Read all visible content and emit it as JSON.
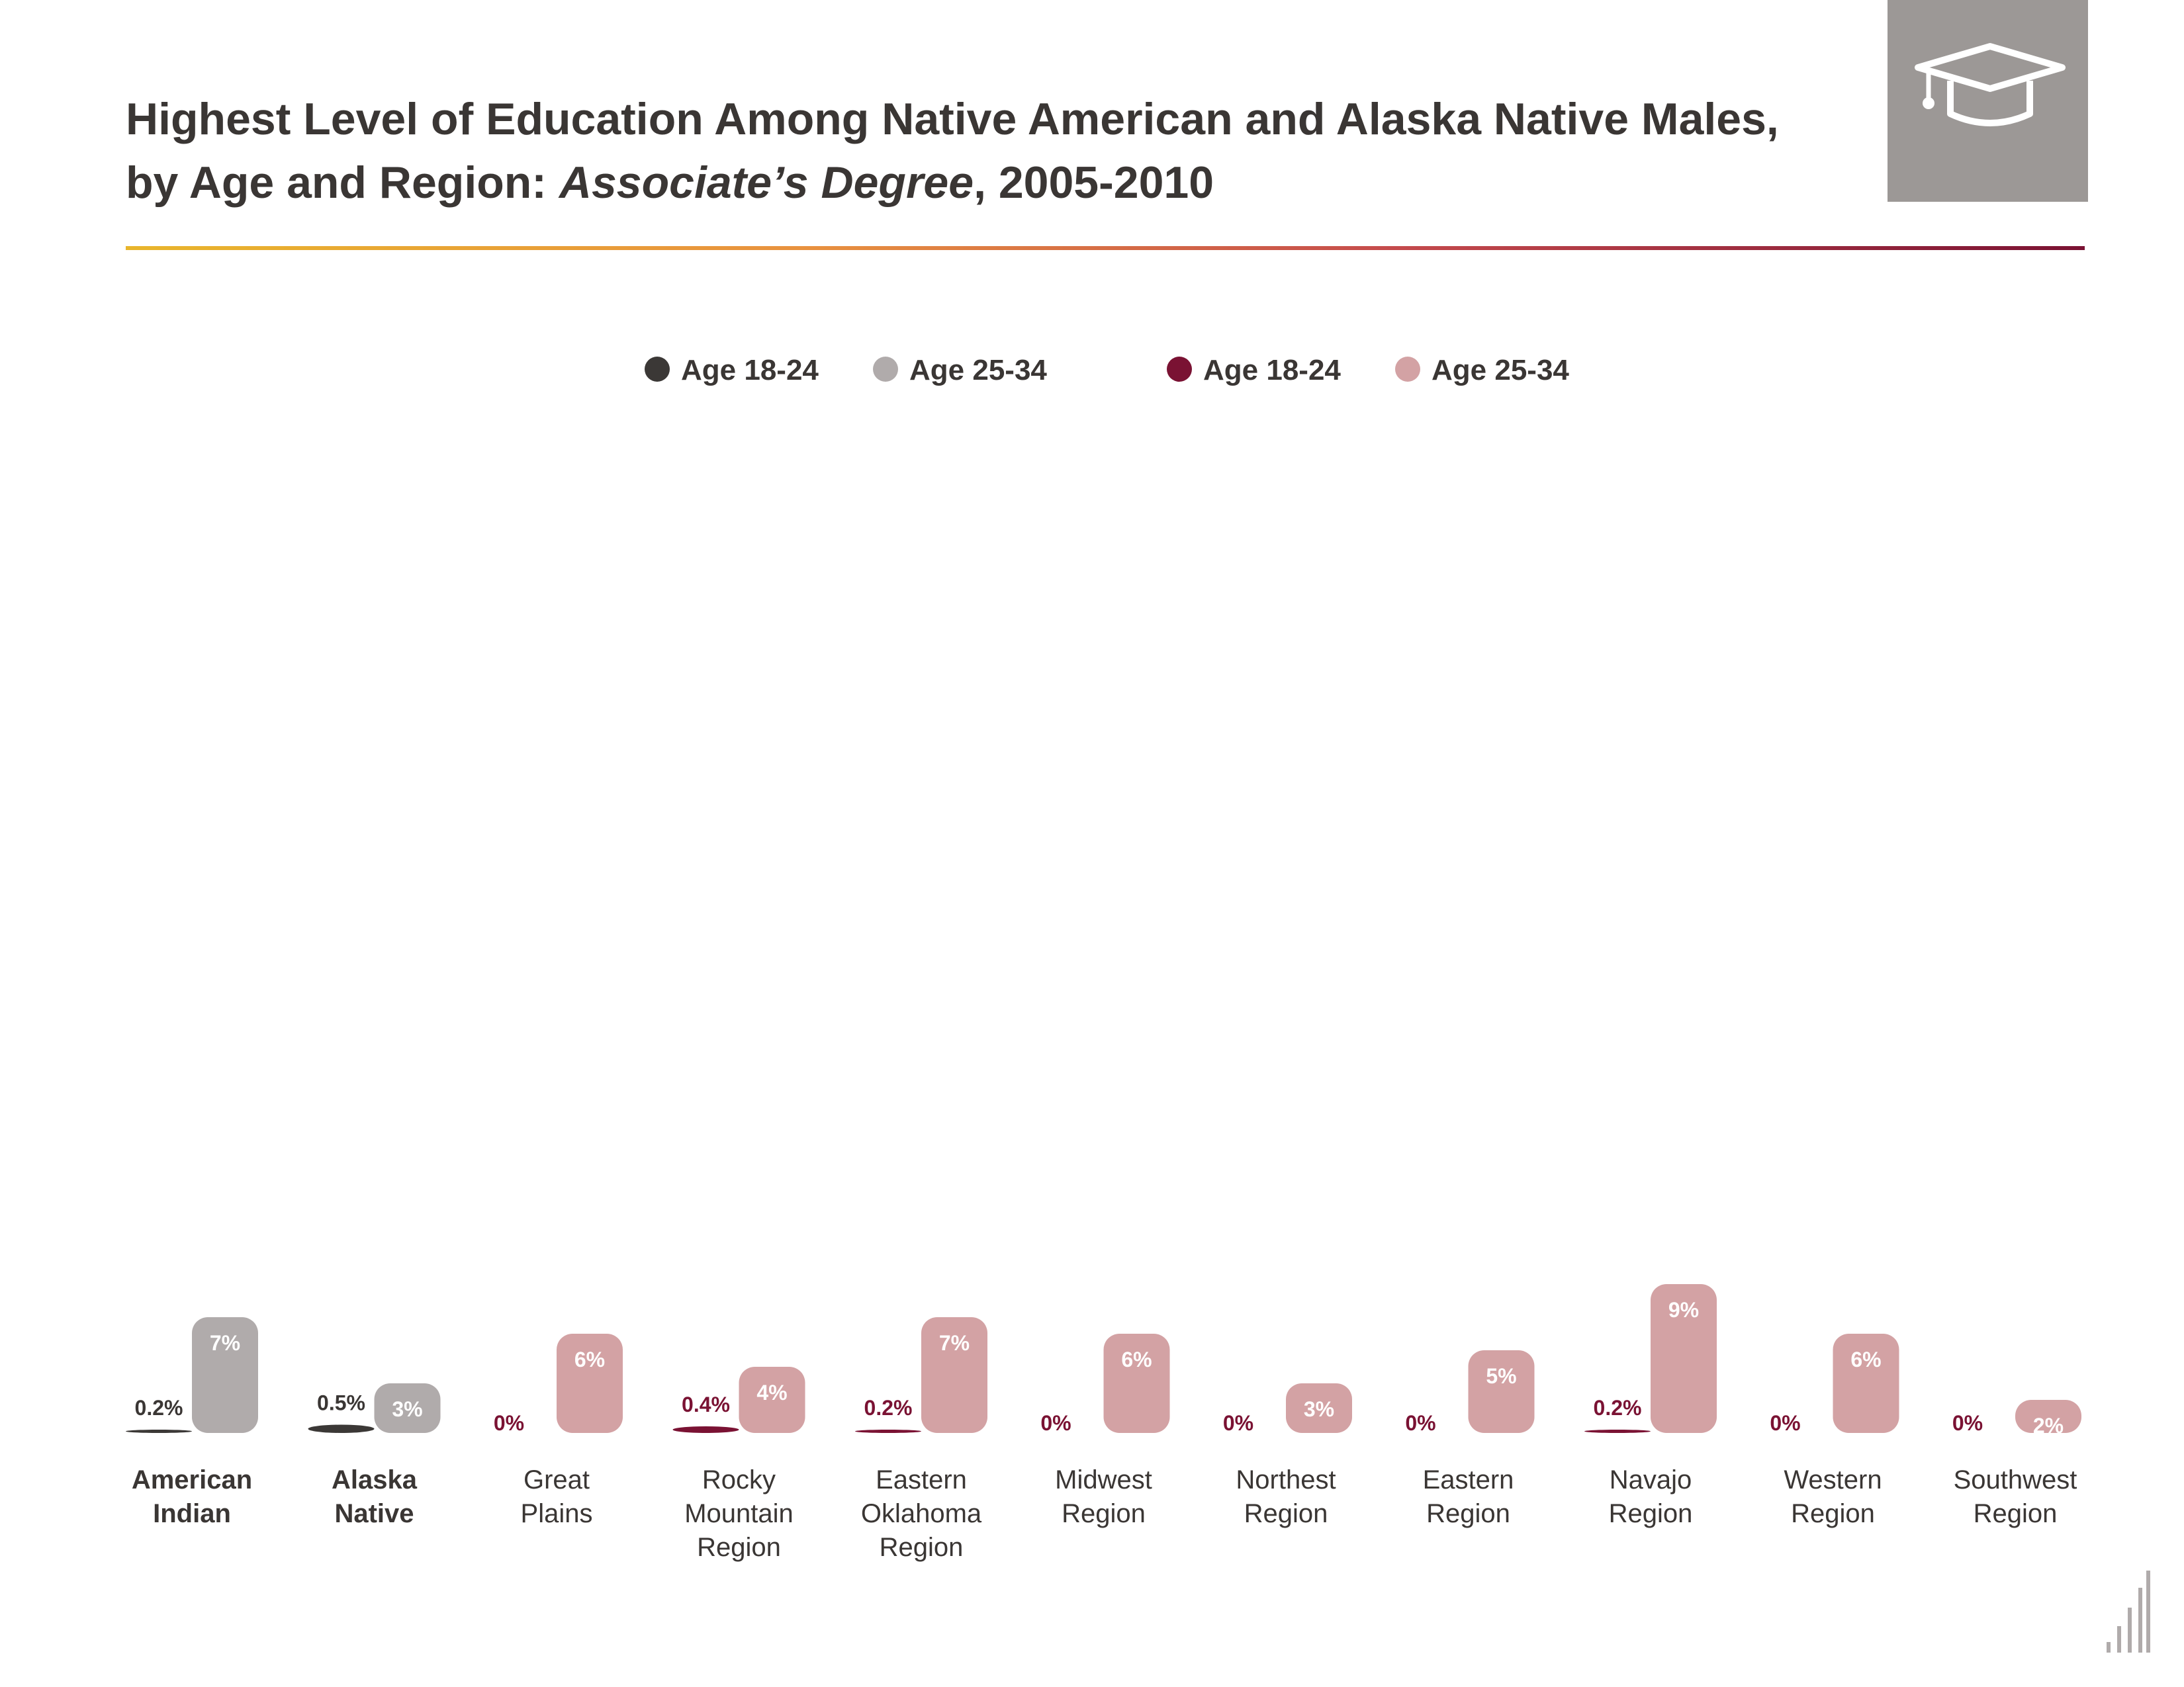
{
  "title": {
    "line1": "Highest Level of Education Among Native American and Alaska Native Males,",
    "line2_prefix": "by Age and Region: ",
    "line2_italic": "Associate’s Degree",
    "line2_suffix": ", 2005-2010"
  },
  "icons": {
    "header": "graduation-cap-icon",
    "footer": "bar-chart-icon"
  },
  "colors": {
    "national_18_24": "#3b3836",
    "national_25_34": "#b0abab",
    "region_18_24": "#7a1233",
    "region_25_34": "#d3a2a4",
    "label_text": "#3a3634",
    "region_label": "#7a1233",
    "cap_box": "#9c9896"
  },
  "chart_data": {
    "type": "bar",
    "legend_position": "top-center",
    "grid": false,
    "series": [
      {
        "name": "Age 18-24",
        "group": "national"
      },
      {
        "name": "Age 25-34",
        "group": "national"
      },
      {
        "name": "Age 18-24",
        "group": "region"
      },
      {
        "name": "Age 25-34",
        "group": "region"
      }
    ],
    "categories": [
      {
        "label": "American Indian",
        "lines": [
          "American",
          "Indian"
        ],
        "bold": true,
        "group": "national",
        "age_18_24": 0.2,
        "age_25_34": 7,
        "labels": [
          "0.2%",
          "7%"
        ]
      },
      {
        "label": "Alaska Native",
        "lines": [
          "Alaska",
          "Native"
        ],
        "bold": true,
        "group": "national",
        "age_18_24": 0.5,
        "age_25_34": 3,
        "labels": [
          "0.5%",
          "3%"
        ]
      },
      {
        "label": "Great Plains",
        "lines": [
          "Great",
          "Plains"
        ],
        "bold": false,
        "group": "region",
        "age_18_24": 0,
        "age_25_34": 6,
        "labels": [
          "0%",
          "6%"
        ]
      },
      {
        "label": "Rocky Mountain Region",
        "lines": [
          "Rocky",
          "Mountain",
          "Region"
        ],
        "bold": false,
        "group": "region",
        "age_18_24": 0.4,
        "age_25_34": 4,
        "labels": [
          "0.4%",
          "4%"
        ]
      },
      {
        "label": "Eastern Oklahoma Region",
        "lines": [
          "Eastern",
          "Oklahoma",
          "Region"
        ],
        "bold": false,
        "group": "region",
        "age_18_24": 0.2,
        "age_25_34": 7,
        "labels": [
          "0.2%",
          "7%"
        ]
      },
      {
        "label": "Midwest Region",
        "lines": [
          "Midwest",
          "Region"
        ],
        "bold": false,
        "group": "region",
        "age_18_24": 0,
        "age_25_34": 6,
        "labels": [
          "0%",
          "6%"
        ]
      },
      {
        "label": "Northest Region",
        "lines": [
          "Northest",
          "Region"
        ],
        "bold": false,
        "group": "region",
        "age_18_24": 0,
        "age_25_34": 3,
        "labels": [
          "0%",
          "3%"
        ]
      },
      {
        "label": "Eastern Region",
        "lines": [
          "Eastern",
          "Region"
        ],
        "bold": false,
        "group": "region",
        "age_18_24": 0,
        "age_25_34": 5,
        "labels": [
          "0%",
          "5%"
        ]
      },
      {
        "label": "Navajo Region",
        "lines": [
          "Navajo",
          "Region"
        ],
        "bold": false,
        "group": "region",
        "age_18_24": 0.2,
        "age_25_34": 9,
        "labels": [
          "0.2%",
          "9%"
        ]
      },
      {
        "label": "Western Region",
        "lines": [
          "Western",
          "Region"
        ],
        "bold": false,
        "group": "region",
        "age_18_24": 0,
        "age_25_34": 6,
        "labels": [
          "0%",
          "6%"
        ]
      },
      {
        "label": "Southwest Region",
        "lines": [
          "Southwest",
          "Region"
        ],
        "bold": false,
        "group": "region",
        "age_18_24": 0,
        "age_25_34": 2,
        "labels": [
          "0%",
          "2%"
        ]
      }
    ]
  }
}
